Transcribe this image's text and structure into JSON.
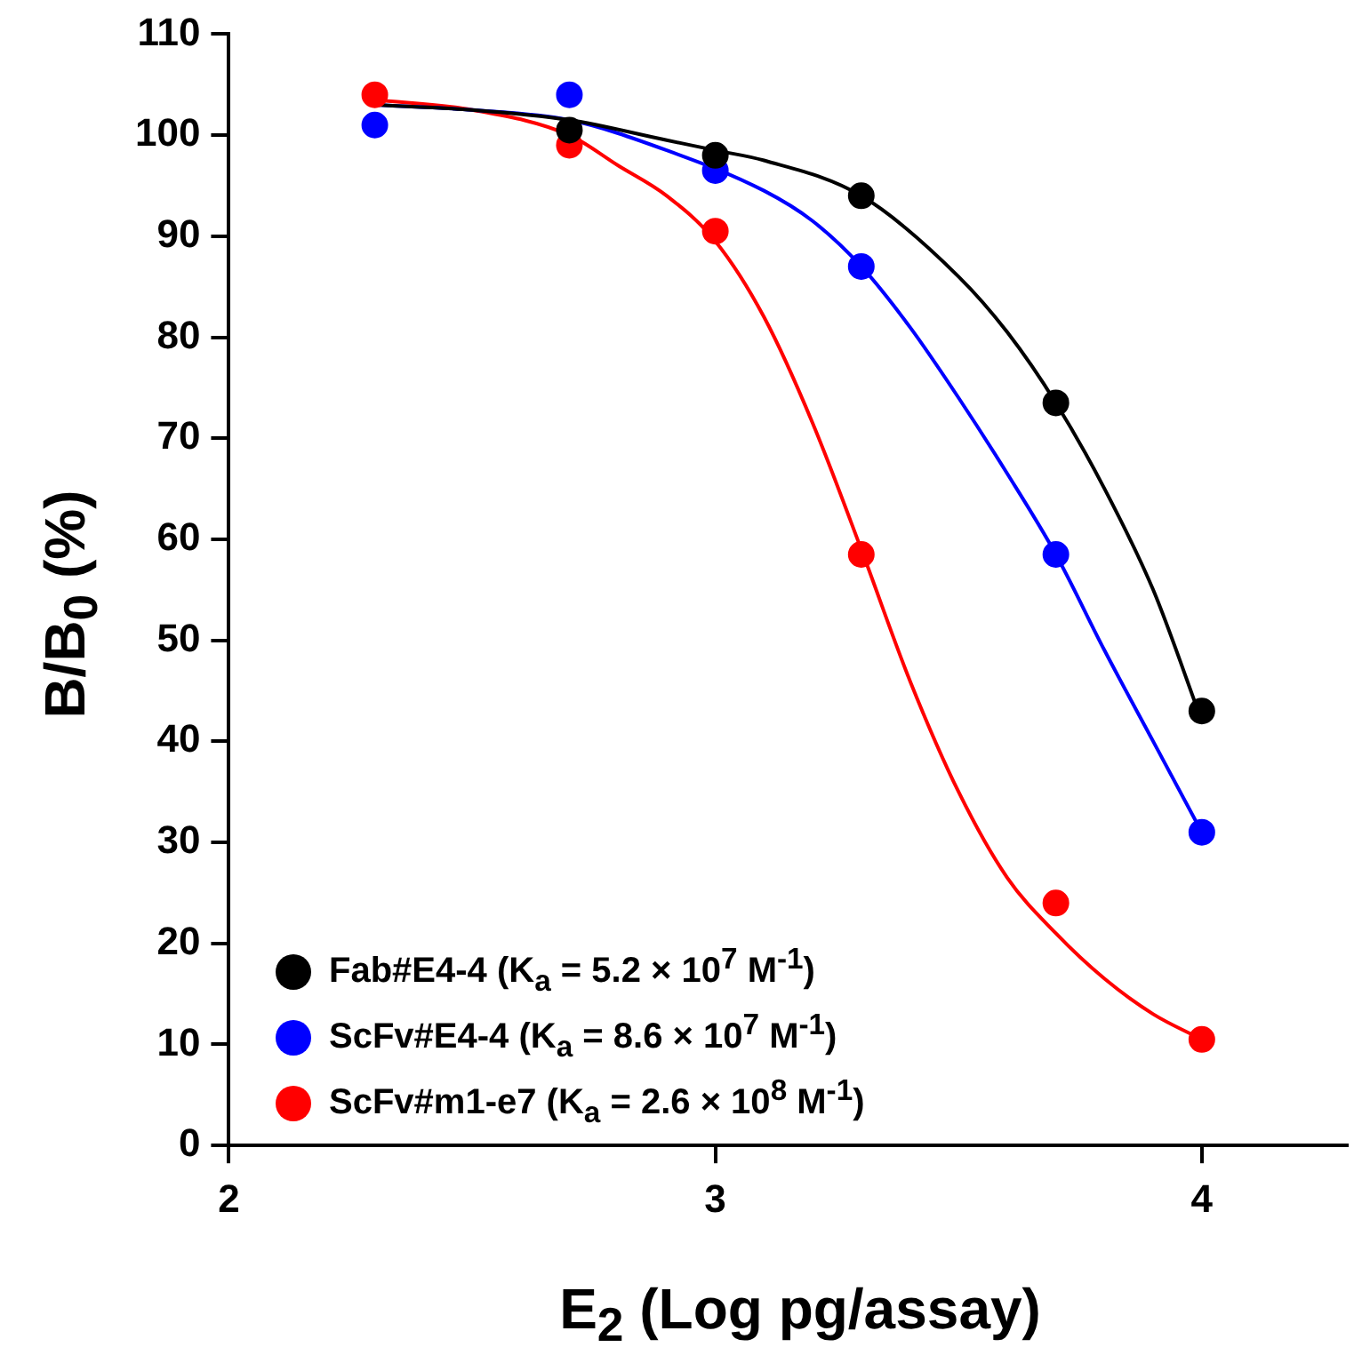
{
  "chart_data": {
    "type": "scatter",
    "xlabel": "E$_{2}$ (Log pg/assay)",
    "ylabel": "B/B$_{0}$ (%)",
    "x": [
      2.3,
      2.7,
      3,
      3.3,
      3.7,
      4
    ],
    "xlim": [
      2,
      4.3
    ],
    "xticks": [
      2,
      3,
      4
    ],
    "ylim": [
      0,
      110
    ],
    "yticks": [
      0,
      10,
      20,
      30,
      40,
      50,
      60,
      70,
      80,
      90,
      100,
      110
    ],
    "grid": false,
    "legend": "bottom left",
    "marker": "circle",
    "series": [
      {
        "name": "Fab#E4-4 (K$_{a}$ = 5.2 × 10$^{7}$ M$^{-1}$)",
        "color": "#000000",
        "values": [
          null,
          100.5,
          98,
          94,
          73.5,
          43
        ]
      },
      {
        "name": "ScFv#E4-4 (K$_{a}$ = 8.6 × 10$^{7}$ M$^{-1}$)",
        "color": "#0000ff",
        "values": [
          101,
          104,
          96.5,
          87,
          58.5,
          31
        ]
      },
      {
        "name": "ScFv#m1-e7 (K$_{a}$ = 2.6 × 10$^{8}$ M$^{-1}$)",
        "color": "#ff0000",
        "values": [
          104,
          99,
          90.5,
          58.5,
          24,
          10.5
        ]
      },
      {
        "type": "line",
        "marker": "none",
        "color": "#000000",
        "x": [
          2.3,
          2.5,
          2.7,
          2.9,
          3.0,
          3.1,
          3.3,
          3.5,
          3.6,
          3.7,
          3.8,
          3.9,
          4.0
        ],
        "values": [
          103,
          102.5,
          101.5,
          99.5,
          98.5,
          97.5,
          94,
          86,
          80.5,
          73.5,
          65,
          55,
          42
        ]
      },
      {
        "type": "line",
        "marker": "none",
        "color": "#0000ff",
        "x": [
          2.3,
          2.5,
          2.7,
          2.9,
          3.1,
          3.2,
          3.3,
          3.4,
          3.5,
          3.6,
          3.7,
          3.8,
          3.9,
          4.0
        ],
        "values": [
          103,
          102.5,
          101.5,
          98.5,
          94.5,
          91.5,
          87,
          81,
          74,
          66.5,
          58.5,
          49,
          40,
          31
        ]
      },
      {
        "type": "line",
        "marker": "none",
        "color": "#ff0000",
        "x": [
          2.3,
          2.5,
          2.7,
          2.8,
          2.9,
          3.0,
          3.1,
          3.2,
          3.3,
          3.4,
          3.5,
          3.6,
          3.7,
          3.8,
          3.9,
          4.0
        ],
        "values": [
          103.5,
          102.5,
          100,
          97,
          94,
          89.5,
          82,
          71.5,
          59,
          46,
          35,
          26.5,
          21,
          16.5,
          13,
          10.5
        ]
      }
    ]
  }
}
